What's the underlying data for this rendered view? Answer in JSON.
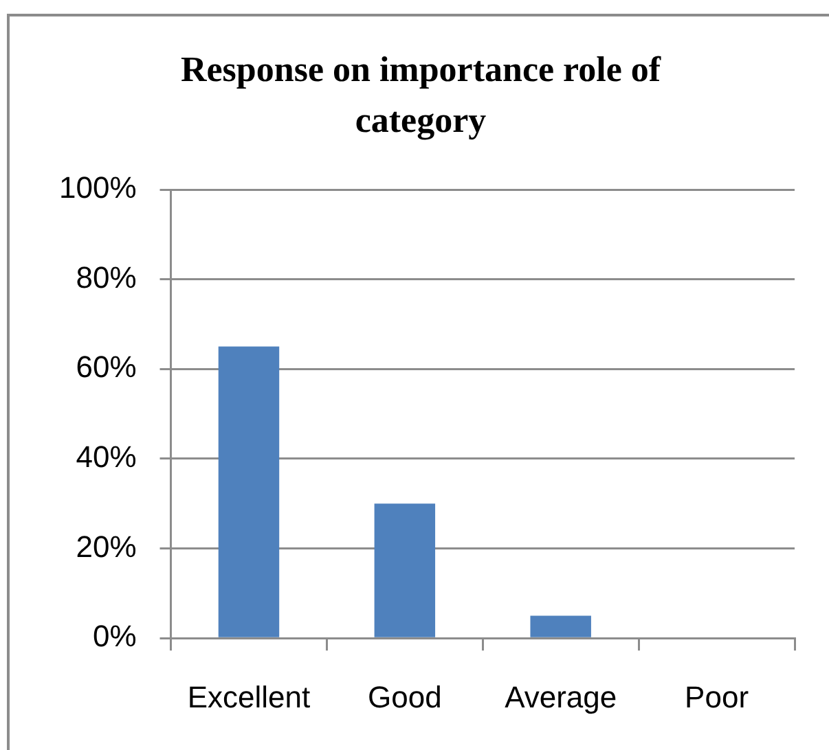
{
  "chart_data": {
    "type": "bar",
    "title": "Response on importance role of category",
    "categories": [
      "Excellent",
      "Good",
      "Average",
      "Poor"
    ],
    "values": [
      65,
      30,
      5,
      0
    ],
    "color": "#4f81bd",
    "ylim": [
      0,
      100
    ],
    "yticks": [
      {
        "value": 0,
        "label": "0%"
      },
      {
        "value": 20,
        "label": "20%"
      },
      {
        "value": 40,
        "label": "40%"
      },
      {
        "value": 60,
        "label": "60%"
      },
      {
        "value": 80,
        "label": "80%"
      },
      {
        "value": 100,
        "label": "100%"
      }
    ],
    "grid": "y"
  }
}
